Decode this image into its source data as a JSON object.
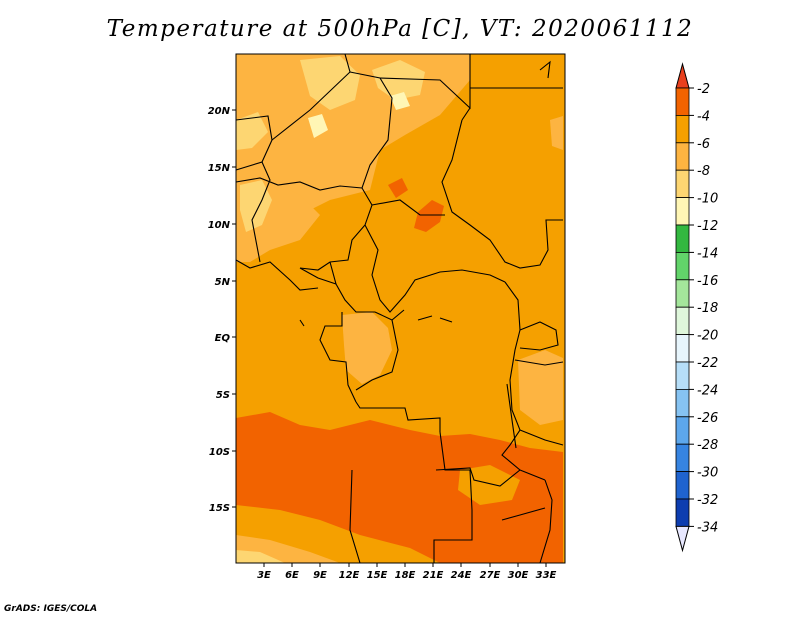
{
  "title": "Temperature at 500hPa [C], VT: 2020061112",
  "credit": "GrADS: IGES/COLA",
  "lat_labels": [
    "20N",
    "15N",
    "10N",
    "5N",
    "EQ",
    "5S",
    "10S",
    "15S"
  ],
  "lon_labels": [
    "3E",
    "6E",
    "9E",
    "12E",
    "15E",
    "18E",
    "21E",
    "24E",
    "27E",
    "30E",
    "33E"
  ],
  "colorbar": {
    "labels": [
      "-2",
      "-4",
      "-6",
      "-8",
      "-10",
      "-12",
      "-14",
      "-16",
      "-18",
      "-20",
      "-22",
      "-24",
      "-26",
      "-28",
      "-30",
      "-32",
      "-34"
    ],
    "colors": [
      "#e8401e",
      "#f26300",
      "#f5a000",
      "#fdb441",
      "#fdd672",
      "#fff6b5",
      "#33b840",
      "#62d46a",
      "#a4e69b",
      "#dff7db",
      "#e7f5fc",
      "#b6def8",
      "#86c3f2",
      "#5da7ec",
      "#3684e1",
      "#1f63cf",
      "#0d3db0",
      "#061472",
      "#e8e8ff"
    ]
  },
  "colors": {
    "warm_orange": "#f26300",
    "orange": "#f5a000",
    "light_orange": "#fdb441",
    "pale_yellow": "#fdd672",
    "cream": "#fff6b5",
    "border_line": "#000000"
  }
}
